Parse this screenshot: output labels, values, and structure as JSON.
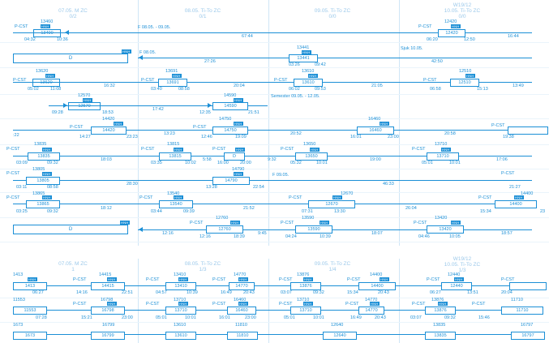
{
  "headers_top": [
    {
      "title": "07.05. M ZC",
      "sub": "0/2"
    },
    {
      "title": "08.05. Ti-To ZC",
      "sub": "0/1"
    },
    {
      "title": "09.05. Ti-To ZC",
      "sub": "0/0"
    },
    {
      "title": "W19/12",
      "sub": "10.05. Ti-To ZC",
      "sub2": "0/0"
    }
  ],
  "headers_bottom": [
    {
      "title": "07.05. M ZC",
      "sub": "1"
    },
    {
      "title": "08.05. Ti-To ZC",
      "sub": "1/3"
    },
    {
      "title": "09.05. Ti-To ZC",
      "sub": "1/4"
    },
    {
      "title": "W19/12",
      "sub": "10.05. Ti-To ZC",
      "sub2": "1/3"
    }
  ],
  "labels": {
    "pcst": "P-CST",
    "d": "D",
    "f1": "F 08.05. - 09.05.",
    "f2": "F 08.05.",
    "f3": "F 09.05.",
    "sjuk": "Sjuk 10.05.",
    "semester": "Semester 09.05. - 12.05.",
    "tag": "HNH"
  },
  "trains": {
    "t13460": "13460",
    "t13400": "13400",
    "t12420a": "12420",
    "t12420b": "12420",
    "t13441a": "13441",
    "t13441b": "13441",
    "t13620a": "13620",
    "t13620b": "13620",
    "t13691a": "13691",
    "t13691b": "13691",
    "t13610a": "13610",
    "t13610b": "13610",
    "t12510a": "12510",
    "t12510b": "12510",
    "t12570a": "12570",
    "t12570b": "12570",
    "t14590a": "14590",
    "t14590b": "14590",
    "t14420a": "14420",
    "t14420b": "14420",
    "t14750a": "14750",
    "t14750b": "14750",
    "t16460a": "16460",
    "t16460b": "16460",
    "t13835a": "13835",
    "t13835b": "13835",
    "t13815a": "13815",
    "t13815b": "13815",
    "tD": "D",
    "t13650a": "13650",
    "t13650b": "13650",
    "t13710a": "13710",
    "t13710b": "13710",
    "t13805a": "13805",
    "t13805b": "13805",
    "t14790a": "14790",
    "t14790b": "14790",
    "t13865a": "13865",
    "t13865b": "13865",
    "t13540a": "13540",
    "t13540b": "13540",
    "t12670a": "12670",
    "t12670b": "12670",
    "t14400a": "14400",
    "t14400b": "14400",
    "t12760a": "12760",
    "t12760b": "12760",
    "t13590a": "13590",
    "t13590b": "13590",
    "t13420a": "13420",
    "t13420b": "13420"
  },
  "times": {
    "r1": [
      "04:32",
      "10:36",
      "67:44",
      "06:20",
      "12:50",
      "16:44"
    ],
    "r2": [
      "27:26",
      "03:26",
      "09:42",
      "42:50"
    ],
    "r3": [
      "05:02",
      "11:08",
      "16:32",
      "03:40",
      "08:58",
      "20:04",
      "06:02",
      "09:53",
      "21:05",
      "06:58",
      "15:13",
      "13:49"
    ],
    "r4": [
      "09:28",
      "18:53",
      "17:42",
      "12:35",
      "21:51"
    ],
    "r5": [
      ":22",
      "14:27",
      "23:23",
      "13:23",
      "12:46",
      "19:09",
      "20:52",
      "16:01",
      "23:00",
      "20:58",
      "19:38"
    ],
    "r6": [
      "03:09",
      "09:32",
      "18:03",
      "03:35",
      "10:02",
      "5:58",
      "16:00",
      "20:00",
      "9:32",
      "05:32",
      "10:01",
      "19:00",
      "05:01",
      "10:01",
      "17:06"
    ],
    "r7": [
      "03:11",
      "08:58",
      "28:30",
      "13:28",
      "22:54",
      "46:33",
      "21:27"
    ],
    "r8": [
      "03:25",
      "09:32",
      "18:12",
      "03:44",
      "09:39",
      "21:52",
      "07:31",
      "13:30",
      "26:04",
      "15:34",
      "23"
    ],
    "r9": [
      "12:16",
      "12:16",
      "18:39",
      "9:45",
      "04:24",
      "10:39",
      "18:07",
      "04:46",
      "10:05",
      "18:57"
    ]
  },
  "bottom_rows": {
    "b1": [
      "1413",
      "1413",
      "06:27",
      "14415",
      "14415",
      "14:16",
      "22:51",
      "13410",
      "13410",
      "04:57",
      "10:39",
      "14770",
      "14770",
      "16:49",
      "20:43",
      "13876",
      "13876",
      "03:07",
      "09:32",
      "14400",
      "14400",
      "15:34",
      "20:43",
      "12440",
      "12440",
      "06:27",
      "13:51",
      "20:04"
    ],
    "b2": [
      "11553",
      "11553",
      "07:28",
      "16798",
      "16798",
      "15:21",
      "23:00",
      "13710",
      "13710",
      "05:01",
      "10:01",
      "16460",
      "16460",
      "16:01",
      "23:00",
      "13710",
      "13710",
      "05:01",
      "10:01",
      "14770",
      "14770",
      "16:49",
      "20:43",
      "13876",
      "13876",
      "03:07",
      "09:32",
      "11710",
      "11710",
      "15:46"
    ],
    "b3": [
      "1673",
      "1673",
      "16799",
      "16799",
      "13610",
      "13610",
      "11810",
      "11810",
      "12640",
      "12640",
      "13835",
      "13835",
      "16797",
      "16797"
    ]
  }
}
